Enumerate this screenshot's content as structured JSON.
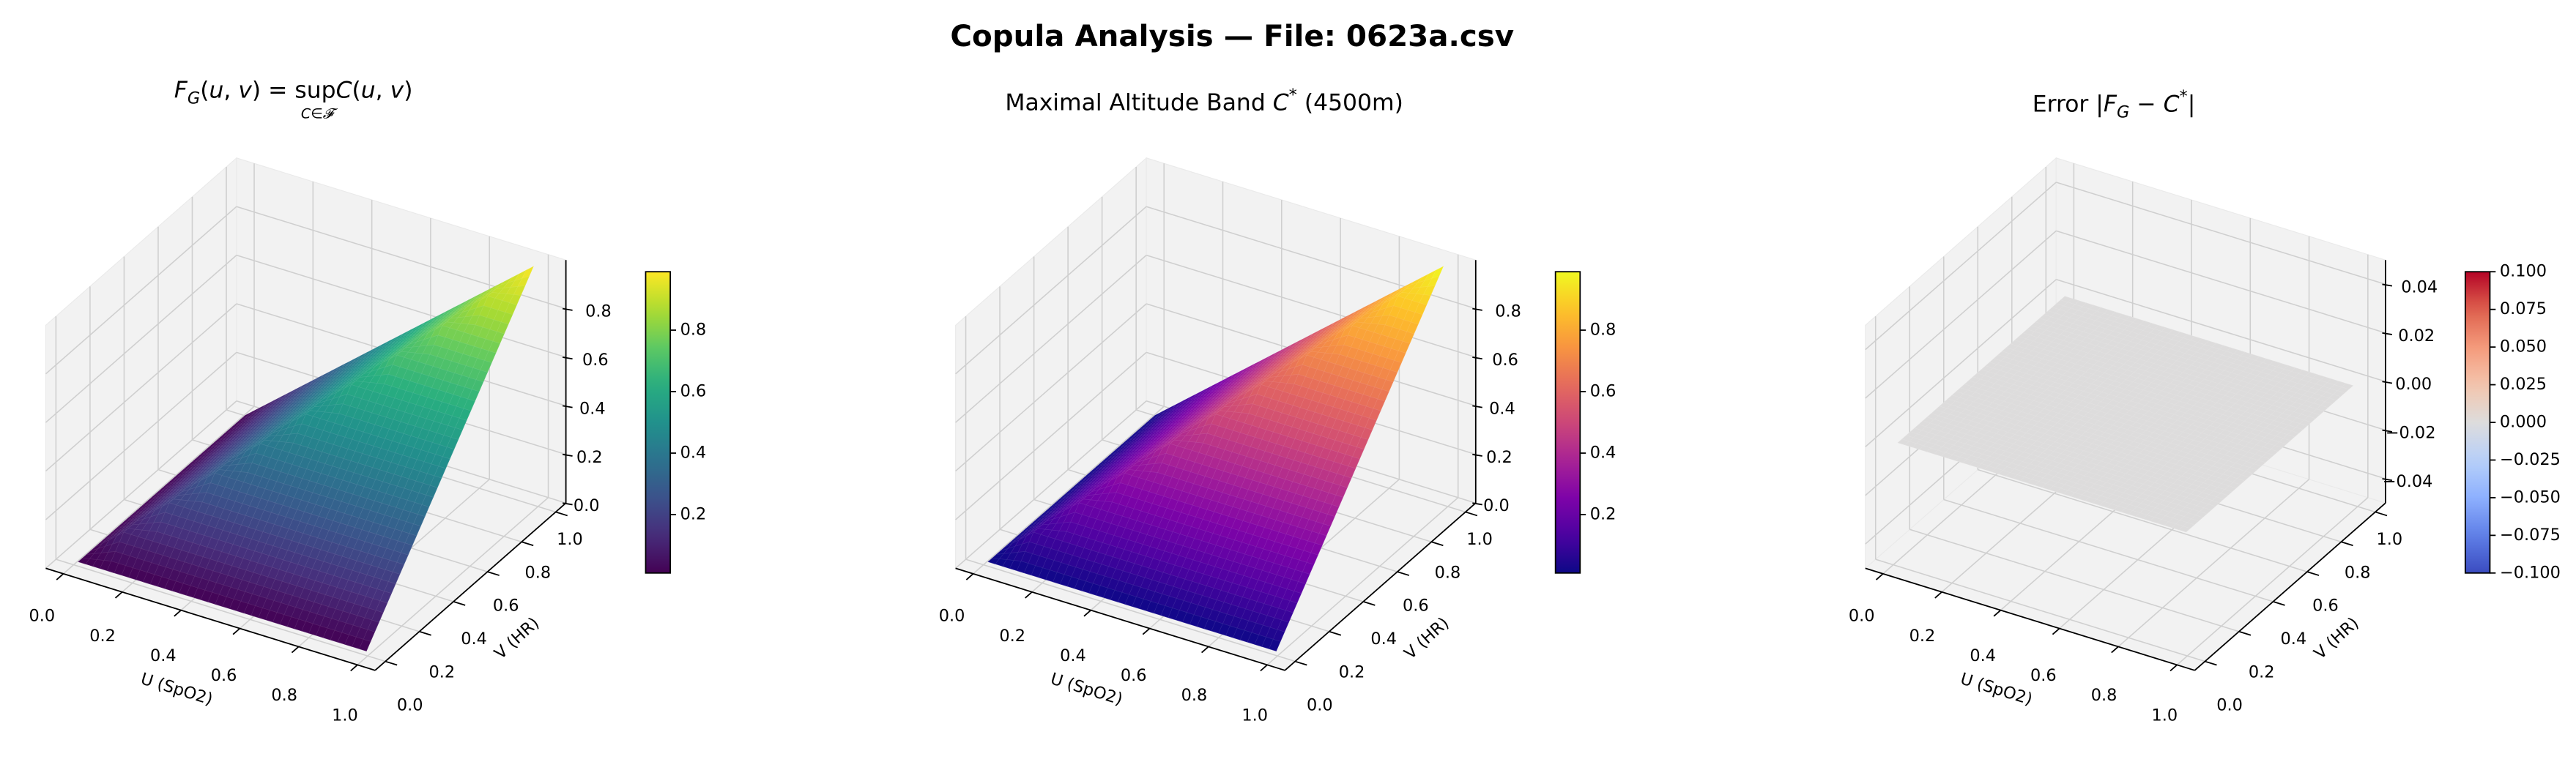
{
  "figure": {
    "title": "Copula Analysis — File: 0623a.csv"
  },
  "chart_data": [
    {
      "type": "surface3d",
      "title_parts": [
        {
          "text": "F",
          "italic": true
        },
        {
          "text": "G",
          "italic": true,
          "sub": true
        },
        {
          "text": "(",
          "italic": false
        },
        {
          "text": "u",
          "italic": true
        },
        {
          "text": ", ",
          "italic": false
        },
        {
          "text": "v",
          "italic": true
        },
        {
          "text": ") = sup",
          "italic": false
        },
        {
          "text": "C",
          "italic": true
        },
        {
          "text": "(",
          "italic": false
        },
        {
          "text": "u",
          "italic": true
        },
        {
          "text": ", ",
          "italic": false
        },
        {
          "text": "v",
          "italic": true
        },
        {
          "text": ")",
          "italic": false
        }
      ],
      "title_underscript": "C∈𝓕",
      "xlabel": "U (SpO2)",
      "ylabel": "V (HR)",
      "xlim": [
        0,
        1
      ],
      "ylim": [
        0,
        1
      ],
      "zlim": [
        0,
        1
      ],
      "xticks": [
        0,
        0.2,
        0.4,
        0.6,
        0.8,
        1.0
      ],
      "xtick_labels": [
        "0.0",
        "0.2",
        "0.4",
        "0.6",
        "0.8",
        "1.0"
      ],
      "yticks": [
        0,
        0.2,
        0.4,
        0.6,
        0.8,
        1.0
      ],
      "ytick_labels": [
        "0.0",
        "0.2",
        "0.4",
        "0.6",
        "0.8",
        "1.0"
      ],
      "zticks": [
        0,
        0.2,
        0.4,
        0.6,
        0.8
      ],
      "ztick_labels": [
        "0.0",
        "0.2",
        "0.4",
        "0.6",
        "0.8"
      ],
      "colormap": "viridis",
      "colorbar": {
        "range": [
          0.01,
          0.99
        ],
        "ticks": [
          0.2,
          0.4,
          0.6,
          0.8
        ],
        "tick_labels": [
          "0.2",
          "0.4",
          "0.6",
          "0.8"
        ]
      },
      "grid": [
        0.01,
        0.108,
        0.206,
        0.304,
        0.402,
        0.5,
        0.598,
        0.696,
        0.794,
        0.892,
        0.99
      ],
      "z": [
        [
          0.01,
          0.01,
          0.01,
          0.01,
          0.01,
          0.01,
          0.01,
          0.01,
          0.01,
          0.01,
          0.01
        ],
        [
          0.01,
          0.108,
          0.108,
          0.108,
          0.108,
          0.108,
          0.108,
          0.108,
          0.108,
          0.108,
          0.108
        ],
        [
          0.01,
          0.108,
          0.206,
          0.206,
          0.206,
          0.206,
          0.206,
          0.206,
          0.206,
          0.206,
          0.206
        ],
        [
          0.01,
          0.108,
          0.206,
          0.304,
          0.304,
          0.304,
          0.304,
          0.304,
          0.304,
          0.304,
          0.304
        ],
        [
          0.01,
          0.108,
          0.206,
          0.304,
          0.402,
          0.402,
          0.402,
          0.402,
          0.402,
          0.402,
          0.402
        ],
        [
          0.01,
          0.108,
          0.206,
          0.304,
          0.402,
          0.5,
          0.5,
          0.5,
          0.5,
          0.5,
          0.5
        ],
        [
          0.01,
          0.108,
          0.206,
          0.304,
          0.402,
          0.5,
          0.598,
          0.598,
          0.598,
          0.598,
          0.598
        ],
        [
          0.01,
          0.108,
          0.206,
          0.304,
          0.402,
          0.5,
          0.598,
          0.696,
          0.696,
          0.696,
          0.696
        ],
        [
          0.01,
          0.108,
          0.206,
          0.304,
          0.402,
          0.5,
          0.598,
          0.696,
          0.794,
          0.794,
          0.794
        ],
        [
          0.01,
          0.108,
          0.206,
          0.304,
          0.402,
          0.5,
          0.598,
          0.696,
          0.794,
          0.892,
          0.892
        ],
        [
          0.01,
          0.108,
          0.206,
          0.304,
          0.402,
          0.5,
          0.598,
          0.696,
          0.794,
          0.892,
          0.99
        ]
      ]
    },
    {
      "type": "surface3d",
      "title_parts": [
        {
          "text": "Maximal Altitude Band ",
          "italic": false
        },
        {
          "text": "C",
          "italic": true
        },
        {
          "text": "*",
          "sup": true
        },
        {
          "text": " (4500m)",
          "italic": false
        }
      ],
      "xlabel": "U (SpO2)",
      "ylabel": "V (HR)",
      "xlim": [
        0,
        1
      ],
      "ylim": [
        0,
        1
      ],
      "zlim": [
        0,
        1
      ],
      "xticks": [
        0,
        0.2,
        0.4,
        0.6,
        0.8,
        1.0
      ],
      "xtick_labels": [
        "0.0",
        "0.2",
        "0.4",
        "0.6",
        "0.8",
        "1.0"
      ],
      "yticks": [
        0,
        0.2,
        0.4,
        0.6,
        0.8,
        1.0
      ],
      "ytick_labels": [
        "0.0",
        "0.2",
        "0.4",
        "0.6",
        "0.8",
        "1.0"
      ],
      "zticks": [
        0,
        0.2,
        0.4,
        0.6,
        0.8
      ],
      "ztick_labels": [
        "0.0",
        "0.2",
        "0.4",
        "0.6",
        "0.8"
      ],
      "colormap": "plasma",
      "colorbar": {
        "range": [
          0.01,
          0.99
        ],
        "ticks": [
          0.2,
          0.4,
          0.6,
          0.8
        ],
        "tick_labels": [
          "0.2",
          "0.4",
          "0.6",
          "0.8"
        ]
      },
      "grid": [
        0.01,
        0.108,
        0.206,
        0.304,
        0.402,
        0.5,
        0.598,
        0.696,
        0.794,
        0.892,
        0.99
      ],
      "z": [
        [
          0.01,
          0.01,
          0.01,
          0.01,
          0.01,
          0.01,
          0.01,
          0.01,
          0.01,
          0.01,
          0.01
        ],
        [
          0.01,
          0.108,
          0.108,
          0.108,
          0.108,
          0.108,
          0.108,
          0.108,
          0.108,
          0.108,
          0.108
        ],
        [
          0.01,
          0.108,
          0.206,
          0.206,
          0.206,
          0.206,
          0.206,
          0.206,
          0.206,
          0.206,
          0.206
        ],
        [
          0.01,
          0.108,
          0.206,
          0.304,
          0.304,
          0.304,
          0.304,
          0.304,
          0.304,
          0.304,
          0.304
        ],
        [
          0.01,
          0.108,
          0.206,
          0.304,
          0.402,
          0.402,
          0.402,
          0.402,
          0.402,
          0.402,
          0.402
        ],
        [
          0.01,
          0.108,
          0.206,
          0.304,
          0.402,
          0.5,
          0.5,
          0.5,
          0.5,
          0.5,
          0.5
        ],
        [
          0.01,
          0.108,
          0.206,
          0.304,
          0.402,
          0.5,
          0.598,
          0.598,
          0.598,
          0.598,
          0.598
        ],
        [
          0.01,
          0.108,
          0.206,
          0.304,
          0.402,
          0.5,
          0.598,
          0.696,
          0.696,
          0.696,
          0.696
        ],
        [
          0.01,
          0.108,
          0.206,
          0.304,
          0.402,
          0.5,
          0.598,
          0.696,
          0.794,
          0.794,
          0.794
        ],
        [
          0.01,
          0.108,
          0.206,
          0.304,
          0.402,
          0.5,
          0.598,
          0.696,
          0.794,
          0.892,
          0.892
        ],
        [
          0.01,
          0.108,
          0.206,
          0.304,
          0.402,
          0.5,
          0.598,
          0.696,
          0.794,
          0.892,
          0.99
        ]
      ]
    },
    {
      "type": "surface3d",
      "title_parts": [
        {
          "text": "Error |",
          "italic": false
        },
        {
          "text": "F",
          "italic": true
        },
        {
          "text": "G",
          "italic": true,
          "sub": true
        },
        {
          "text": " − ",
          "italic": false
        },
        {
          "text": "C",
          "italic": true
        },
        {
          "text": "*",
          "sup": true
        },
        {
          "text": "|",
          "italic": false
        }
      ],
      "xlabel": "U (SpO2)",
      "ylabel": "V (HR)",
      "xlim": [
        0,
        1
      ],
      "ylim": [
        0,
        1
      ],
      "zlim": [
        -0.05,
        0.05
      ],
      "xticks": [
        0,
        0.2,
        0.4,
        0.6,
        0.8,
        1.0
      ],
      "xtick_labels": [
        "0.0",
        "0.2",
        "0.4",
        "0.6",
        "0.8",
        "1.0"
      ],
      "yticks": [
        0,
        0.2,
        0.4,
        0.6,
        0.8,
        1.0
      ],
      "ytick_labels": [
        "0.0",
        "0.2",
        "0.4",
        "0.6",
        "0.8",
        "1.0"
      ],
      "zticks": [
        -0.04,
        -0.02,
        0,
        0.02,
        0.04
      ],
      "ztick_labels": [
        "−0.04",
        "−0.02",
        "0.00",
        "0.02",
        "0.04"
      ],
      "colormap": "coolwarm",
      "colorbar": {
        "range": [
          -0.1,
          0.1
        ],
        "ticks": [
          -0.1,
          -0.075,
          -0.05,
          -0.025,
          0,
          0.025,
          0.05,
          0.075,
          0.1
        ],
        "tick_labels": [
          "−0.100",
          "−0.075",
          "−0.050",
          "−0.025",
          "0.000",
          "0.025",
          "0.050",
          "0.075",
          "0.100"
        ]
      },
      "grid": [
        0.01,
        0.108,
        0.206,
        0.304,
        0.402,
        0.5,
        0.598,
        0.696,
        0.794,
        0.892,
        0.99
      ],
      "z": [
        [
          0,
          0,
          0,
          0,
          0,
          0,
          0,
          0,
          0,
          0,
          0
        ],
        [
          0,
          0,
          0,
          0,
          0,
          0,
          0,
          0,
          0,
          0,
          0
        ],
        [
          0,
          0,
          0,
          0,
          0,
          0,
          0,
          0,
          0,
          0,
          0
        ],
        [
          0,
          0,
          0,
          0,
          0,
          0,
          0,
          0,
          0,
          0,
          0
        ],
        [
          0,
          0,
          0,
          0,
          0,
          0,
          0,
          0,
          0,
          0,
          0
        ],
        [
          0,
          0,
          0,
          0,
          0,
          0,
          0,
          0,
          0,
          0,
          0
        ],
        [
          0,
          0,
          0,
          0,
          0,
          0,
          0,
          0,
          0,
          0,
          0
        ],
        [
          0,
          0,
          0,
          0,
          0,
          0,
          0,
          0,
          0,
          0,
          0
        ],
        [
          0,
          0,
          0,
          0,
          0,
          0,
          0,
          0,
          0,
          0,
          0
        ],
        [
          0,
          0,
          0,
          0,
          0,
          0,
          0,
          0,
          0,
          0,
          0
        ],
        [
          0,
          0,
          0,
          0,
          0,
          0,
          0,
          0,
          0,
          0,
          0
        ]
      ]
    }
  ]
}
